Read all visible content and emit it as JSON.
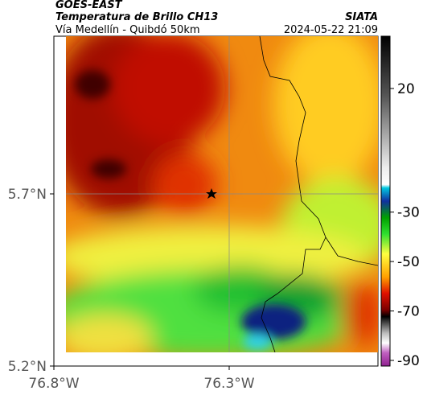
{
  "header": {
    "satellite": "GOES-EAST",
    "product": "Temperatura de Brillo CH13",
    "source": "SIATA",
    "route": "Vía Medellín - Quibdó 50km",
    "timestamp": "2024-05-22 21:09"
  },
  "map": {
    "lat_labels": [
      "5.7°N",
      "5.2°N"
    ],
    "lon_labels": [
      "76.8°W",
      "76.3°W"
    ]
  },
  "colorbar": {
    "ticks": [
      20,
      -30,
      -50,
      -70,
      -90
    ]
  }
}
